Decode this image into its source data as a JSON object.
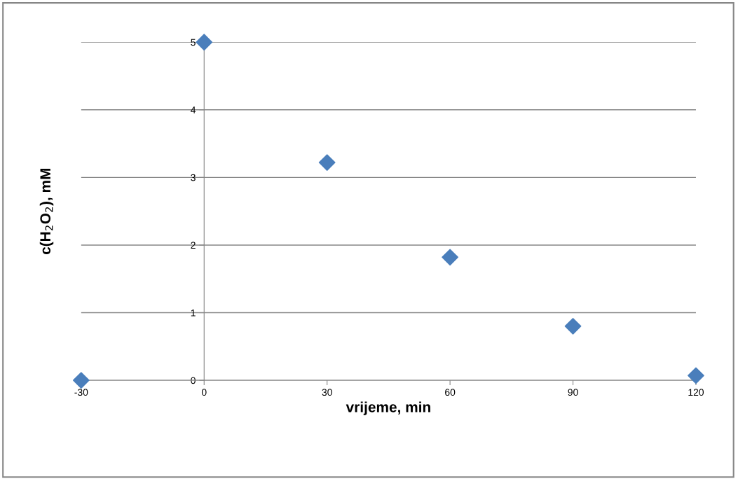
{
  "chart_data": {
    "type": "scatter",
    "xlabel": "vrijeme, min",
    "ylabel": "c(H$_{2}$O$_{2}$), mM",
    "x": [
      -30,
      0,
      30,
      60,
      90,
      120
    ],
    "series": [
      {
        "color": "#4a7ebb",
        "values": [
          0,
          5,
          3.22,
          1.82,
          0.8,
          0.07
        ]
      }
    ],
    "xlim": [
      -30,
      120
    ],
    "xticks": [
      -30,
      0,
      30,
      60,
      90,
      120
    ],
    "ylim": [
      0,
      5
    ],
    "yticks": [
      0,
      1,
      2,
      3,
      4,
      5
    ],
    "grid": "y",
    "marker": "diamond",
    "legend": false
  }
}
